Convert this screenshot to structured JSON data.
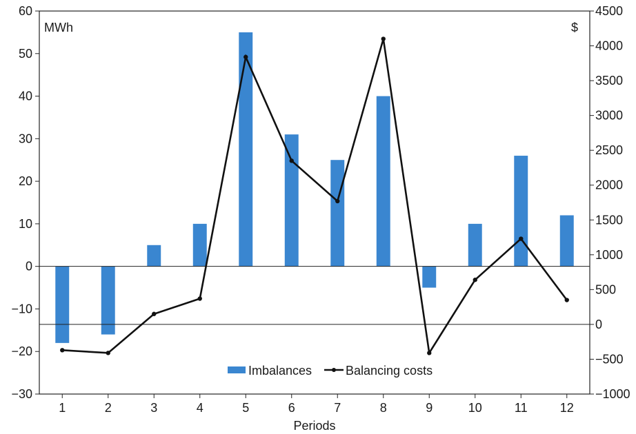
{
  "chart_data": {
    "type": "bar",
    "title": "",
    "xlabel": "Periods",
    "categories": [
      "1",
      "2",
      "3",
      "4",
      "5",
      "6",
      "7",
      "8",
      "9",
      "10",
      "11",
      "12"
    ],
    "left_axis": {
      "unit": "MWh",
      "ylim": [
        -30,
        60
      ],
      "ticks": [
        "60",
        "50",
        "40",
        "30",
        "20",
        "10",
        "0",
        "−10",
        "−20",
        "−30"
      ],
      "tick_values": [
        60,
        50,
        40,
        30,
        20,
        10,
        0,
        -10,
        -20,
        -30
      ]
    },
    "right_axis": {
      "unit": "$",
      "ylim": [
        -1000,
        4500
      ],
      "ticks": [
        "4500",
        "4000",
        "3500",
        "3000",
        "2500",
        "2000",
        "1500",
        "1000",
        "500",
        "0",
        "−500",
        "−1000"
      ],
      "tick_values": [
        4500,
        4000,
        3500,
        3000,
        2500,
        2000,
        1500,
        1000,
        500,
        0,
        -500,
        -1000
      ]
    },
    "series": [
      {
        "name": "Imbalances",
        "kind": "bar",
        "axis": "left",
        "color": "#3a86d0",
        "values": [
          -18,
          -16,
          5,
          10,
          55,
          31,
          25,
          40,
          -5,
          10,
          26,
          12
        ]
      },
      {
        "name": "Balancing costs",
        "kind": "line",
        "axis": "right",
        "color": "#111111",
        "values": [
          -370,
          -410,
          150,
          370,
          3840,
          2350,
          1770,
          4100,
          -410,
          640,
          1230,
          350
        ]
      }
    ],
    "grid": false,
    "legend_position": "bottom-center"
  }
}
